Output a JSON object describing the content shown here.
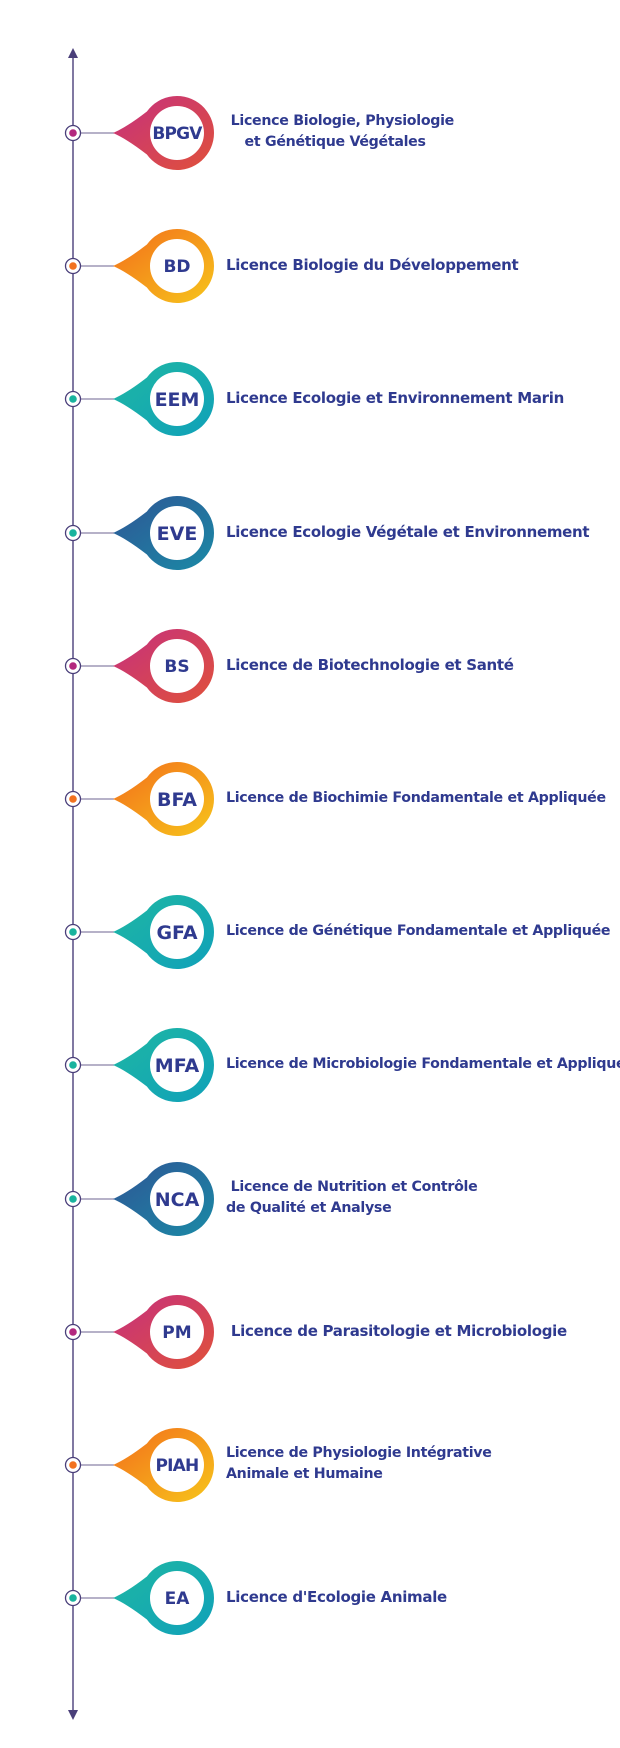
{
  "items": [
    {
      "code": "BPGV",
      "label": " Licence Biologie, Physiologie\n    et Génétique Végétales",
      "scheme": "magenta"
    },
    {
      "code": "BD",
      "label": "Licence Biologie du Développement",
      "scheme": "orange"
    },
    {
      "code": "EEM",
      "label": "Licence Ecologie et Environnement Marin",
      "scheme": "teal"
    },
    {
      "code": "EVE",
      "label": "Licence Ecologie Végétale et Environnement",
      "scheme": "navy"
    },
    {
      "code": "BS",
      "label": "Licence de Biotechnologie et Santé",
      "scheme": "magenta"
    },
    {
      "code": "BFA",
      "label": "Licence de Biochimie Fondamentale et Appliquée",
      "scheme": "orange"
    },
    {
      "code": "GFA",
      "label": "Licence de Génétique Fondamentale et Appliquée",
      "scheme": "teal"
    },
    {
      "code": "MFA",
      "label": "Licence de Microbiologie Fondamentale et Appliquée",
      "scheme": "teal"
    },
    {
      "code": "NCA",
      "label": " Licence de Nutrition et Contrôle\nde Qualité et Analyse",
      "scheme": "navy"
    },
    {
      "code": "PM",
      "label": " Licence de Parasitologie et Microbiologie",
      "scheme": "magenta"
    },
    {
      "code": "PIAH",
      "label": "Licence de Physiologie Intégrative\nAnimale et Humaine",
      "scheme": "orange"
    },
    {
      "code": "EA",
      "label": "Licence d'Ecologie Animale",
      "scheme": "teal"
    }
  ],
  "colors": {
    "axis": "#4a3f7a",
    "text": "#2f3a8f",
    "badge_text": "#2f3a8f",
    "magenta": [
      "#c5307f",
      "#e0513a"
    ],
    "orange": [
      "#f26d1b",
      "#f7c51b"
    ],
    "teal": [
      "#1fb7a3",
      "#10a1b9"
    ],
    "navy": [
      "#2f5595",
      "#1a8aa6"
    ],
    "dots": {
      "magenta": "#b3287f",
      "orange": "#f27220",
      "teal": "#19b39e",
      "navy": "#19b39e"
    }
  }
}
